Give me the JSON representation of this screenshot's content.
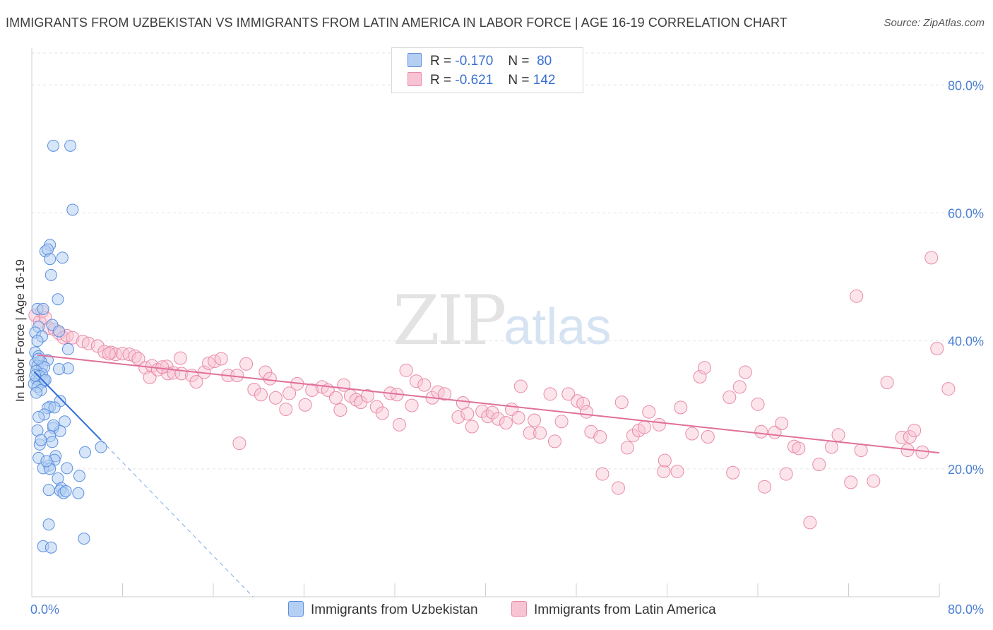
{
  "title": "IMMIGRANTS FROM UZBEKISTAN VS IMMIGRANTS FROM LATIN AMERICA IN LABOR FORCE | AGE 16-19 CORRELATION CHART",
  "source": "Source: ZipAtlas.com",
  "watermark": {
    "zip": "ZIP",
    "atlas": "atlas"
  },
  "legend": {
    "r_label": "R =",
    "n_label": "N =",
    "series1": {
      "r": "-0.170",
      "n": "80"
    },
    "series2": {
      "r": "-0.621",
      "n": "142"
    }
  },
  "colors": {
    "uzbekistan_fill": "#b5cff3",
    "uzbekistan_stroke": "#5b8fe0",
    "uzbekistan_line": "#2f6fd8",
    "latin_fill": "#f8c3d3",
    "latin_stroke": "#e88aa8",
    "latin_line": "#e0709a",
    "tick_text": "#4a7fd4",
    "grid": "#e3e3e3"
  },
  "chart_data": {
    "type": "scatter",
    "title": "IMMIGRANTS FROM UZBEKISTAN VS IMMIGRANTS FROM LATIN AMERICA IN LABOR FORCE | AGE 16-19 CORRELATION CHART",
    "xlabel": "",
    "ylabel": "In Labor Force | Age 16-19",
    "xlim": [
      0,
      80
    ],
    "ylim": [
      0,
      85
    ],
    "x_tick_labels": [
      "0.0%",
      "80.0%"
    ],
    "y_tick_labels": [
      "80.0%",
      "60.0%",
      "40.0%",
      "20.0%"
    ],
    "y_ticks": [
      80,
      60,
      40,
      20
    ],
    "grid": true,
    "legend_position": "top-center",
    "series": [
      {
        "name": "Immigrants from Uzbekistan",
        "r": -0.17,
        "n": 80,
        "trend": {
          "x": [
            0.2,
            6.1
          ],
          "y": [
            35.2,
            24.5
          ],
          "dashed_to": [
            19.5,
            0
          ]
        },
        "points": [
          [
            1.9,
            70.5
          ],
          [
            3.4,
            70.5
          ],
          [
            3.6,
            60.5
          ],
          [
            1.6,
            55
          ],
          [
            1.2,
            54
          ],
          [
            1.4,
            54.3
          ],
          [
            1.6,
            52.8
          ],
          [
            2.7,
            53
          ],
          [
            1.7,
            50.3
          ],
          [
            2.3,
            46.5
          ],
          [
            0.5,
            45
          ],
          [
            1,
            45
          ],
          [
            0.6,
            42.2
          ],
          [
            1.8,
            42.5
          ],
          [
            0.3,
            41.3
          ],
          [
            2.4,
            41.5
          ],
          [
            0.9,
            40.7
          ],
          [
            0.5,
            40
          ],
          [
            3.2,
            38.7
          ],
          [
            0.3,
            38.2
          ],
          [
            0.6,
            37.6
          ],
          [
            1.4,
            37
          ],
          [
            0.3,
            36.5
          ],
          [
            0.8,
            36.8
          ],
          [
            0.5,
            36.1
          ],
          [
            0.9,
            36
          ],
          [
            1.1,
            35.9
          ],
          [
            3.2,
            35.7
          ],
          [
            2.4,
            35.6
          ],
          [
            0.4,
            35.3
          ],
          [
            0.9,
            34.8
          ],
          [
            0.7,
            34.5
          ],
          [
            0.4,
            34
          ],
          [
            0.6,
            33.8
          ],
          [
            1,
            33.6
          ],
          [
            1.1,
            33.8
          ],
          [
            0.2,
            33.3
          ],
          [
            0.5,
            32.8
          ],
          [
            0.8,
            32.3
          ],
          [
            0.4,
            31.9
          ],
          [
            2.5,
            30.6
          ],
          [
            1.6,
            29.7
          ],
          [
            1.4,
            29.5
          ],
          [
            1.1,
            28.5
          ],
          [
            0.6,
            28.1
          ],
          [
            2.9,
            27.4
          ],
          [
            1.9,
            26.4
          ],
          [
            0.5,
            26
          ],
          [
            2.5,
            25.9
          ],
          [
            1.6,
            25.1
          ],
          [
            1.8,
            24.2
          ],
          [
            0.7,
            23.8
          ],
          [
            6.1,
            23.4
          ],
          [
            4.7,
            22.6
          ],
          [
            2.1,
            22
          ],
          [
            0.6,
            21.7
          ],
          [
            2,
            21.4
          ],
          [
            1.5,
            20.5
          ],
          [
            1,
            20.1
          ],
          [
            1.6,
            20
          ],
          [
            3.1,
            20.1
          ],
          [
            2.3,
            18.5
          ],
          [
            4.2,
            18.9
          ],
          [
            2.6,
            17
          ],
          [
            2.5,
            16.6
          ],
          [
            1.5,
            16.7
          ],
          [
            2.8,
            16.2
          ],
          [
            4.1,
            16.2
          ],
          [
            1.5,
            11.3
          ],
          [
            1,
            7.9
          ],
          [
            1.7,
            7.7
          ],
          [
            4.6,
            9.1
          ],
          [
            0.6,
            37.2
          ],
          [
            1.2,
            33.9
          ],
          [
            0.3,
            34.6
          ],
          [
            2,
            29.6
          ],
          [
            1.3,
            21.2
          ],
          [
            3,
            16.5
          ],
          [
            0.8,
            24.5
          ],
          [
            1.9,
            26.8
          ]
        ]
      },
      {
        "name": "Immigrants from Latin America",
        "r": -0.621,
        "n": 142,
        "trend": {
          "x": [
            0.5,
            80
          ],
          "y": [
            37.8,
            22.5
          ]
        },
        "points": [
          [
            0.3,
            44
          ],
          [
            0.7,
            43
          ],
          [
            1.5,
            42
          ],
          [
            2,
            41.8
          ],
          [
            2.4,
            41.2
          ],
          [
            2.8,
            40.5
          ],
          [
            3.1,
            40.8
          ],
          [
            3.6,
            40.5
          ],
          [
            4.5,
            39.9
          ],
          [
            5,
            39.6
          ],
          [
            5.8,
            39.2
          ],
          [
            6.4,
            38.3
          ],
          [
            7,
            38.2
          ],
          [
            7.4,
            37.9
          ],
          [
            8,
            38
          ],
          [
            8.6,
            37.9
          ],
          [
            9.1,
            37.6
          ],
          [
            9.4,
            37.2
          ],
          [
            10,
            35.8
          ],
          [
            10.4,
            34.3
          ],
          [
            10.6,
            36.1
          ],
          [
            11.1,
            35.5
          ],
          [
            11.9,
            36
          ],
          [
            12,
            34.9
          ],
          [
            13.1,
            37.3
          ],
          [
            12.5,
            35
          ],
          [
            13.2,
            34.9
          ],
          [
            14.1,
            34.6
          ],
          [
            14.5,
            33.6
          ],
          [
            15.2,
            35.1
          ],
          [
            15.6,
            36.5
          ],
          [
            16.1,
            36.8
          ],
          [
            16.7,
            37.2
          ],
          [
            17.3,
            34.6
          ],
          [
            18.1,
            34.6
          ],
          [
            18.3,
            24
          ],
          [
            18.9,
            36.4
          ],
          [
            19.6,
            32.4
          ],
          [
            20.2,
            31.6
          ],
          [
            20.6,
            35.1
          ],
          [
            21,
            34.1
          ],
          [
            21.5,
            31.1
          ],
          [
            22.4,
            29.3
          ],
          [
            22.7,
            31.8
          ],
          [
            23.4,
            33.3
          ],
          [
            24.1,
            30
          ],
          [
            24.7,
            32.3
          ],
          [
            25.6,
            32.8
          ],
          [
            26.1,
            32.3
          ],
          [
            26.8,
            31.1
          ],
          [
            27.2,
            29.2
          ],
          [
            27.5,
            33.1
          ],
          [
            28.1,
            31.4
          ],
          [
            28.6,
            30.8
          ],
          [
            29,
            30.4
          ],
          [
            29.6,
            31.4
          ],
          [
            30.4,
            29.7
          ],
          [
            30.9,
            28.7
          ],
          [
            31.6,
            31.8
          ],
          [
            32.2,
            31.6
          ],
          [
            32.4,
            26.9
          ],
          [
            33,
            35.4
          ],
          [
            33.5,
            29.9
          ],
          [
            33.9,
            33.7
          ],
          [
            34.6,
            33.1
          ],
          [
            35.3,
            31.1
          ],
          [
            35.8,
            32
          ],
          [
            36.4,
            31.7
          ],
          [
            37.6,
            28.1
          ],
          [
            38,
            30.3
          ],
          [
            38.4,
            28.6
          ],
          [
            38.8,
            26.6
          ],
          [
            39.7,
            29
          ],
          [
            40.2,
            28.2
          ],
          [
            40.6,
            28.8
          ],
          [
            41.1,
            27.8
          ],
          [
            41.8,
            27.2
          ],
          [
            42.3,
            29.3
          ],
          [
            42.9,
            28
          ],
          [
            43.1,
            32.9
          ],
          [
            43.9,
            25.6
          ],
          [
            44.3,
            27.6
          ],
          [
            44.8,
            25.6
          ],
          [
            45.7,
            31.7
          ],
          [
            46.1,
            24.3
          ],
          [
            46.7,
            27.4
          ],
          [
            47.3,
            31.7
          ],
          [
            48.1,
            30.6
          ],
          [
            48.6,
            30.2
          ],
          [
            48.9,
            28.9
          ],
          [
            49.3,
            25.8
          ],
          [
            50.1,
            25
          ],
          [
            50.3,
            19.2
          ],
          [
            51.7,
            17
          ],
          [
            52,
            30.4
          ],
          [
            52.5,
            23.3
          ],
          [
            53,
            25.2
          ],
          [
            53.5,
            26
          ],
          [
            54,
            26.5
          ],
          [
            54.4,
            28.9
          ],
          [
            55.3,
            26.9
          ],
          [
            55.7,
            19.6
          ],
          [
            55.8,
            21.3
          ],
          [
            56.9,
            19.6
          ],
          [
            57.2,
            29.6
          ],
          [
            58.2,
            25.5
          ],
          [
            58.9,
            34.4
          ],
          [
            59.3,
            35.8
          ],
          [
            59.6,
            25
          ],
          [
            61.5,
            31.2
          ],
          [
            61.8,
            19.4
          ],
          [
            62.4,
            32.8
          ],
          [
            62.9,
            35.1
          ],
          [
            64,
            30.1
          ],
          [
            64.3,
            25.8
          ],
          [
            64.6,
            17.2
          ],
          [
            65.5,
            25.7
          ],
          [
            66.1,
            27.1
          ],
          [
            66.5,
            19.2
          ],
          [
            67.2,
            23.5
          ],
          [
            67.6,
            23.2
          ],
          [
            68.6,
            11.6
          ],
          [
            69.4,
            20.7
          ],
          [
            70.5,
            23.4
          ],
          [
            71.1,
            25.3
          ],
          [
            72.2,
            17.9
          ],
          [
            72.7,
            47
          ],
          [
            73.1,
            22.9
          ],
          [
            74.2,
            18.1
          ],
          [
            75.4,
            33.5
          ],
          [
            76.7,
            24.9
          ],
          [
            77.2,
            22.9
          ],
          [
            77.4,
            25
          ],
          [
            77.8,
            26
          ],
          [
            78.5,
            22.6
          ],
          [
            79.3,
            53
          ],
          [
            79.8,
            38.8
          ],
          [
            80.8,
            32.5
          ],
          [
            0.9,
            44.6
          ],
          [
            1.2,
            43.6
          ],
          [
            6.8,
            38
          ],
          [
            11.5,
            35.9
          ]
        ]
      }
    ]
  },
  "bottom_legend": [
    "Immigrants from Uzbekistan",
    "Immigrants from Latin America"
  ]
}
